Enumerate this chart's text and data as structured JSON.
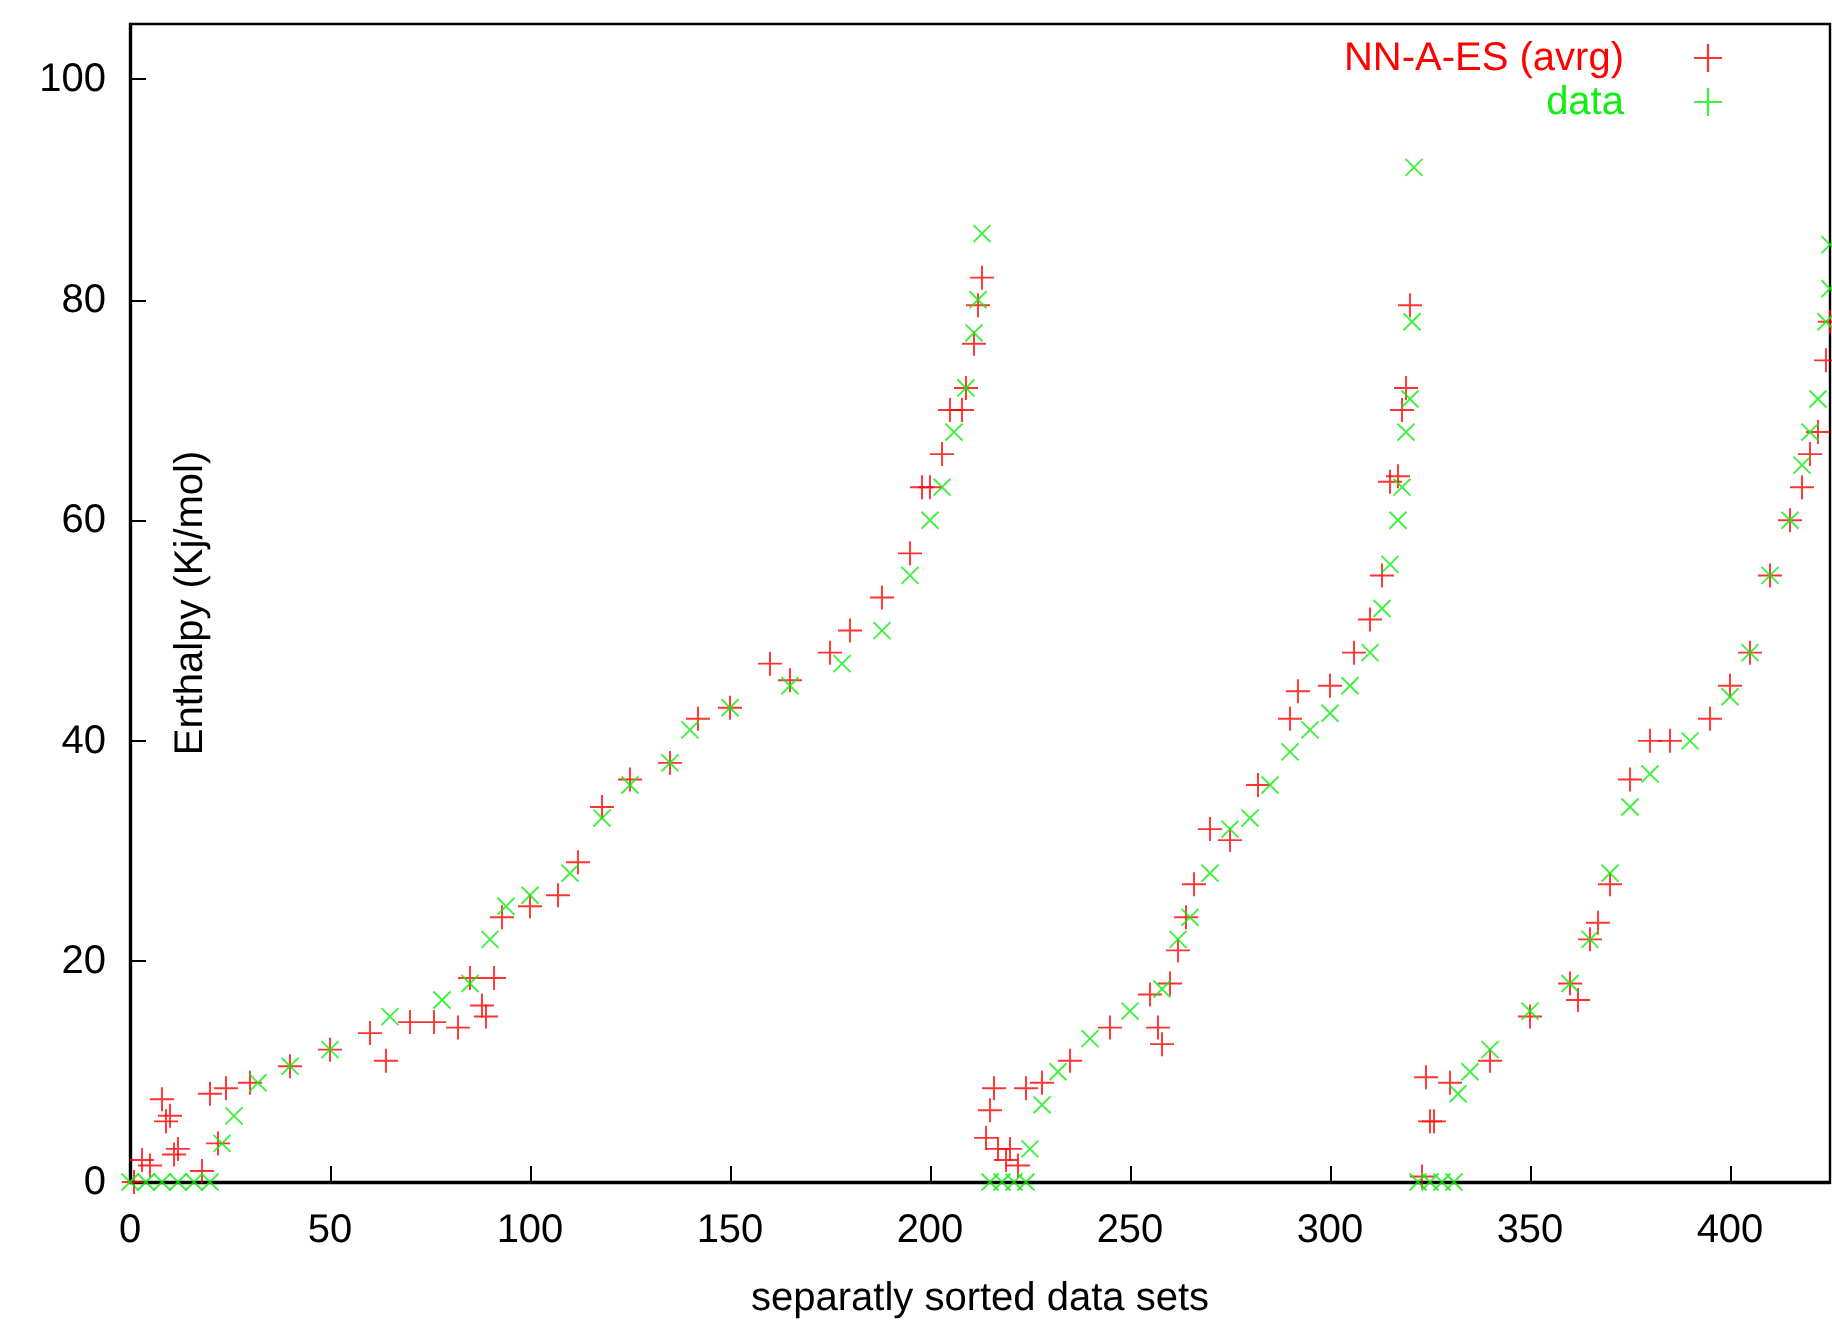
{
  "chart_data": {
    "type": "scatter",
    "xlabel": "separatly sorted data sets",
    "ylabel": "Enthalpy (Kj/mol)",
    "xlim": [
      0,
      425
    ],
    "ylim": [
      0,
      105
    ],
    "xticks": [
      0,
      50,
      100,
      150,
      200,
      250,
      300,
      350,
      400
    ],
    "yticks": [
      0,
      20,
      40,
      60,
      80,
      100
    ],
    "grid": false,
    "legend": "top right",
    "series": [
      {
        "name": "NN-A-ES (avrg)",
        "color": "#ff0000",
        "marker": "plus",
        "x": [
          1,
          3,
          5,
          8,
          9,
          10,
          11,
          12,
          18,
          20,
          22,
          24,
          30,
          40,
          50,
          60,
          64,
          70,
          76,
          82,
          85,
          88,
          89,
          91,
          93,
          100,
          107,
          112,
          118,
          125,
          135,
          142,
          150,
          160,
          165,
          175,
          180,
          188,
          195,
          198,
          200,
          203,
          205,
          208,
          209,
          211,
          212,
          213,
          214,
          215,
          216,
          217,
          219,
          220,
          222,
          224,
          228,
          235,
          245,
          255,
          257,
          258,
          260,
          262,
          264,
          266,
          270,
          275,
          282,
          290,
          292,
          300,
          306,
          310,
          313,
          315,
          317,
          318,
          319,
          320,
          323,
          324,
          325,
          326,
          330,
          340,
          350,
          360,
          362,
          365,
          367,
          370,
          375,
          380,
          385,
          395,
          400,
          405,
          410,
          415,
          418,
          420,
          422,
          424,
          425
        ],
        "values": [
          0,
          2,
          1.5,
          7.5,
          5.5,
          6,
          2.5,
          3,
          1,
          8,
          3.5,
          8.5,
          9,
          10.5,
          12,
          13.5,
          11,
          14.5,
          14.5,
          14,
          18.5,
          16,
          15,
          18.5,
          24,
          25,
          26,
          29,
          34,
          36.5,
          38,
          42,
          43,
          47,
          45.5,
          48,
          50,
          53,
          57,
          63,
          63,
          66,
          70,
          70,
          72,
          76,
          79.5,
          82,
          4,
          6.5,
          8.5,
          3,
          2,
          3,
          1.5,
          8.5,
          9,
          11,
          14,
          17,
          14,
          12.5,
          18,
          21,
          24,
          27,
          32,
          31,
          36,
          42,
          44.5,
          45,
          48,
          51,
          55,
          63.5,
          64,
          70,
          72,
          79.5,
          0.5,
          9.5,
          5.5,
          5.5,
          9,
          11,
          15,
          18,
          16.5,
          22,
          23.5,
          27,
          36.5,
          40,
          40,
          42,
          45,
          48,
          55,
          60,
          63,
          66,
          68,
          74.5,
          78
        ]
      },
      {
        "name": "data",
        "color": "#11ee11",
        "marker": "cross",
        "x": [
          0,
          4,
          8,
          12,
          16,
          20,
          23,
          26,
          32,
          40,
          50,
          65,
          78,
          85,
          90,
          94,
          100,
          110,
          118,
          125,
          135,
          140,
          150,
          165,
          178,
          188,
          195,
          200,
          203,
          206,
          209,
          211,
          212,
          213,
          215,
          218,
          221,
          224,
          225,
          228,
          232,
          240,
          250,
          258,
          262,
          265,
          270,
          275,
          280,
          285,
          290,
          295,
          300,
          305,
          310,
          313,
          315,
          317,
          318,
          319,
          320,
          320.5,
          321,
          322,
          325,
          328,
          331,
          332,
          335,
          340,
          350,
          360,
          365,
          370,
          375,
          380,
          390,
          400,
          405,
          410,
          415,
          418,
          420,
          422,
          424,
          425,
          425
        ],
        "values": [
          0,
          0,
          0,
          0,
          0,
          0,
          3.5,
          6,
          9,
          10.5,
          12,
          15,
          16.5,
          18,
          22,
          25,
          26,
          28,
          33,
          36,
          38,
          41,
          43,
          45,
          47,
          50,
          55,
          60,
          63,
          68,
          72,
          77,
          80,
          86,
          0,
          0,
          0,
          0,
          3,
          7,
          10,
          13,
          15.5,
          17.5,
          22,
          24,
          28,
          32,
          33,
          36,
          39,
          41,
          42.5,
          45,
          48,
          52,
          56,
          60,
          63,
          68,
          71,
          78,
          92,
          0,
          0,
          0,
          0,
          8,
          10,
          12,
          15.5,
          18,
          22,
          28,
          34,
          37,
          40,
          44,
          48,
          55,
          60,
          65,
          68,
          71,
          78,
          81,
          85
        ]
      }
    ]
  }
}
